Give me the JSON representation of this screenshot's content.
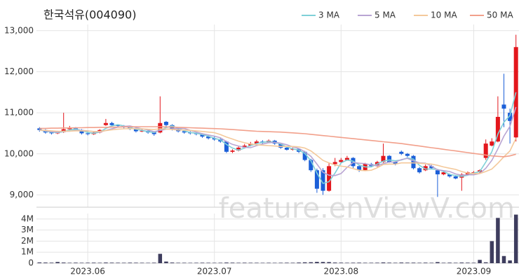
{
  "chart_data": {
    "type": "candlestick",
    "title": "한국석유(004090)",
    "watermark": "feature.enViewV.com",
    "up_color": "#e3161c",
    "down_color": "#1b5fd8",
    "grid": true,
    "legend": "top-right",
    "ylim": [
      8700,
      13150
    ],
    "yticks": [
      {
        "value": 9000,
        "label": "9,000"
      },
      {
        "value": 10000,
        "label": "10,000"
      },
      {
        "value": 11000,
        "label": "11,000"
      },
      {
        "value": 12000,
        "label": "12,000"
      },
      {
        "value": 13000,
        "label": "13,000"
      }
    ],
    "xlim": [
      -0.5,
      79.5
    ],
    "xticks": [
      {
        "value": 8,
        "label": "2023.06"
      },
      {
        "value": 29,
        "label": "2023.07"
      },
      {
        "value": 50,
        "label": "2023.08"
      },
      {
        "value": 72,
        "label": "2023.09"
      }
    ],
    "ohlc": [
      [
        10620,
        10650,
        10540,
        10580
      ],
      [
        10580,
        10600,
        10490,
        10520
      ],
      [
        10520,
        10560,
        10470,
        10500
      ],
      [
        10500,
        10560,
        10480,
        10530
      ],
      [
        10530,
        11000,
        10510,
        10600
      ],
      [
        10600,
        10680,
        10580,
        10620
      ],
      [
        10620,
        10650,
        10550,
        10580
      ],
      [
        10580,
        10600,
        10470,
        10500
      ],
      [
        10500,
        10540,
        10450,
        10480
      ],
      [
        10480,
        10550,
        10460,
        10520
      ],
      [
        10520,
        10600,
        10500,
        10580
      ],
      [
        10700,
        10850,
        10680,
        10750
      ],
      [
        10750,
        10780,
        10680,
        10700
      ],
      [
        10700,
        10720,
        10650,
        10680
      ],
      [
        10680,
        10700,
        10620,
        10650
      ],
      [
        10650,
        10680,
        10580,
        10600
      ],
      [
        10600,
        10630,
        10520,
        10550
      ],
      [
        10550,
        10600,
        10530,
        10560
      ],
      [
        10560,
        10580,
        10490,
        10520
      ],
      [
        10520,
        10550,
        10440,
        10480
      ],
      [
        10520,
        11400,
        10500,
        10750
      ],
      [
        10780,
        10800,
        10660,
        10700
      ],
      [
        10700,
        10720,
        10570,
        10600
      ],
      [
        10600,
        10630,
        10520,
        10550
      ],
      [
        10550,
        10580,
        10490,
        10520
      ],
      [
        10520,
        10550,
        10470,
        10500
      ],
      [
        10500,
        10530,
        10450,
        10480
      ],
      [
        10480,
        10500,
        10390,
        10420
      ],
      [
        10420,
        10450,
        10350,
        10380
      ],
      [
        10380,
        10420,
        10320,
        10350
      ],
      [
        10350,
        10380,
        10270,
        10300
      ],
      [
        10300,
        10320,
        10020,
        10050
      ],
      [
        10050,
        10110,
        10020,
        10080
      ],
      [
        10080,
        10180,
        10060,
        10150
      ],
      [
        10150,
        10240,
        10130,
        10200
      ],
      [
        10200,
        10290,
        10180,
        10250
      ],
      [
        10250,
        10340,
        10230,
        10300
      ],
      [
        10300,
        10330,
        10250,
        10280
      ],
      [
        10280,
        10350,
        10260,
        10320
      ],
      [
        10320,
        10340,
        10220,
        10250
      ],
      [
        10250,
        10270,
        10120,
        10150
      ],
      [
        10150,
        10170,
        10080,
        10100
      ],
      [
        10100,
        10150,
        10080,
        10120
      ],
      [
        10120,
        10140,
        10020,
        10050
      ],
      [
        10050,
        10070,
        9820,
        9850
      ],
      [
        9850,
        9880,
        9560,
        9600
      ],
      [
        9600,
        9640,
        9050,
        9150
      ],
      [
        9600,
        9650,
        9000,
        9100
      ],
      [
        9100,
        9780,
        9080,
        9700
      ],
      [
        9750,
        9900,
        9700,
        9800
      ],
      [
        9800,
        9900,
        9780,
        9850
      ],
      [
        9850,
        9950,
        9830,
        9900
      ],
      [
        9900,
        9920,
        9650,
        9700
      ],
      [
        9700,
        9730,
        9560,
        9600
      ],
      [
        9600,
        9780,
        9580,
        9750
      ],
      [
        9750,
        9780,
        9680,
        9700
      ],
      [
        9700,
        9830,
        9680,
        9800
      ],
      [
        9800,
        10250,
        9780,
        9950
      ],
      [
        9950,
        9970,
        9780,
        9800
      ],
      [
        9800,
        9820,
        9720,
        9750
      ],
      [
        10050,
        10080,
        9970,
        10000
      ],
      [
        10000,
        10020,
        9920,
        9950
      ],
      [
        9950,
        9970,
        9620,
        9650
      ],
      [
        9650,
        9680,
        9520,
        9550
      ],
      [
        9600,
        9740,
        9580,
        9700
      ],
      [
        9700,
        9730,
        9620,
        9650
      ],
      [
        9600,
        9620,
        8950,
        9500
      ],
      [
        9500,
        9570,
        9480,
        9550
      ],
      [
        9500,
        9520,
        9420,
        9450
      ],
      [
        9450,
        9470,
        9380,
        9400
      ],
      [
        9420,
        9530,
        9100,
        9500
      ],
      [
        9500,
        9570,
        9480,
        9550
      ],
      [
        9520,
        9580,
        9500,
        9550
      ],
      [
        9550,
        9620,
        9530,
        9600
      ],
      [
        9900,
        10350,
        9850,
        10250
      ],
      [
        10200,
        10380,
        10180,
        10300
      ],
      [
        10300,
        11400,
        10280,
        10900
      ],
      [
        11200,
        11950,
        10650,
        11100
      ],
      [
        11000,
        11100,
        10250,
        10800
      ],
      [
        10400,
        12900,
        10300,
        12600
      ]
    ],
    "ma": [
      {
        "name": "3 MA",
        "color": "#7fd0d8",
        "values": [
          10580,
          10550,
          10530,
          10520,
          10540,
          10580,
          10600,
          10570,
          10520,
          10500,
          10530,
          10620,
          10680,
          10710,
          10680,
          10640,
          10600,
          10570,
          10540,
          10520,
          10580,
          10640,
          10680,
          10620,
          10560,
          10520,
          10500,
          10470,
          10430,
          10380,
          10340,
          10230,
          10140,
          10090,
          10140,
          10200,
          10250,
          10280,
          10300,
          10280,
          10240,
          10170,
          10120,
          10090,
          10010,
          9830,
          9530,
          9280,
          9320,
          9530,
          9780,
          9850,
          9820,
          9730,
          9680,
          9680,
          9750,
          9820,
          9850,
          9830,
          9850,
          9900,
          9870,
          9720,
          9630,
          9630,
          9620,
          9570,
          9500,
          9470,
          9450,
          9480,
          9530,
          9570,
          9800,
          10050,
          10480,
          10770,
          10930,
          11500
        ]
      },
      {
        "name": "5 MA",
        "color": "#b9a5d3",
        "values": [
          10580,
          10560,
          10540,
          10530,
          10550,
          10550,
          10570,
          10570,
          10560,
          10540,
          10530,
          10570,
          10610,
          10650,
          10670,
          10680,
          10640,
          10610,
          10580,
          10540,
          10570,
          10600,
          10610,
          10620,
          10620,
          10570,
          10530,
          10490,
          10460,
          10430,
          10390,
          10300,
          10230,
          10190,
          10160,
          10150,
          10200,
          10240,
          10270,
          10280,
          10260,
          10220,
          10170,
          10130,
          10050,
          9940,
          9750,
          9550,
          9480,
          9470,
          9520,
          9670,
          9790,
          9770,
          9760,
          9730,
          9710,
          9760,
          9800,
          9800,
          9860,
          9890,
          9830,
          9780,
          9770,
          9700,
          9610,
          9590,
          9570,
          9510,
          9480,
          9490,
          9490,
          9520,
          9650,
          9840,
          10120,
          10430,
          10670,
          11140
        ]
      },
      {
        "name": "10 MA",
        "color": "#f4c99b",
        "values": [
          10580,
          10570,
          10560,
          10550,
          10550,
          10555,
          10560,
          10560,
          10555,
          10545,
          10545,
          10565,
          10585,
          10600,
          10610,
          10615,
          10610,
          10610,
          10600,
          10595,
          10610,
          10605,
          10595,
          10580,
          10580,
          10570,
          10560,
          10545,
          10530,
          10515,
          10470,
          10410,
          10360,
          10310,
          10270,
          10240,
          10220,
          10210,
          10200,
          10190,
          10180,
          10180,
          10180,
          10170,
          10140,
          10070,
          9960,
          9840,
          9780,
          9730,
          9700,
          9680,
          9640,
          9600,
          9590,
          9600,
          9660,
          9740,
          9750,
          9750,
          9780,
          9780,
          9780,
          9770,
          9760,
          9750,
          9720,
          9680,
          9650,
          9620,
          9570,
          9530,
          9520,
          9520,
          9570,
          9630,
          9770,
          9930,
          10070,
          10380
        ]
      },
      {
        "name": "50 MA",
        "color": "#f2a08b",
        "values": [
          10620,
          10620,
          10625,
          10625,
          10630,
          10630,
          10635,
          10635,
          10640,
          10640,
          10645,
          10645,
          10650,
          10650,
          10655,
          10655,
          10660,
          10660,
          10660,
          10660,
          10660,
          10655,
          10650,
          10645,
          10640,
          10635,
          10630,
          10625,
          10620,
          10615,
          10610,
          10600,
          10590,
          10580,
          10570,
          10560,
          10550,
          10545,
          10540,
          10535,
          10530,
          10520,
          10510,
          10500,
          10490,
          10475,
          10460,
          10445,
          10430,
          10415,
          10400,
          10385,
          10370,
          10355,
          10340,
          10325,
          10310,
          10295,
          10280,
          10265,
          10250,
          10230,
          10210,
          10190,
          10170,
          10150,
          10130,
          10110,
          10090,
          10070,
          10050,
          10030,
          10010,
          9990,
          9970,
          9950,
          9940,
          9930,
          9950,
          9990
        ]
      }
    ],
    "volume": {
      "color": "#3e3d5e",
      "ylim": [
        0,
        4500000
      ],
      "yticks": [
        0,
        {
          "value": 1000000,
          "label": "1M"
        },
        {
          "value": 2000000,
          "label": "2M"
        },
        {
          "value": 3000000,
          "label": "3M"
        },
        {
          "value": 4000000,
          "label": "4M"
        }
      ],
      "values": [
        70000,
        60000,
        50000,
        110000,
        60000,
        40000,
        50000,
        40000,
        45000,
        50000,
        40000,
        60000,
        50000,
        45000,
        40000,
        50000,
        45000,
        40000,
        35000,
        45000,
        850000,
        150000,
        60000,
        40000,
        40000,
        35000,
        40000,
        45000,
        40000,
        35000,
        40000,
        60000,
        50000,
        40000,
        45000,
        40000,
        40000,
        35000,
        40000,
        35000,
        40000,
        45000,
        40000,
        60000,
        80000,
        90000,
        120000,
        110000,
        100000,
        60000,
        50000,
        40000,
        45000,
        50000,
        40000,
        40000,
        45000,
        70000,
        50000,
        40000,
        60000,
        50000,
        50000,
        40000,
        50000,
        40000,
        100000,
        40000,
        50000,
        40000,
        60000,
        50000,
        40000,
        300000,
        80000,
        2000000,
        4100000,
        650000,
        250000,
        4400000
      ]
    }
  }
}
